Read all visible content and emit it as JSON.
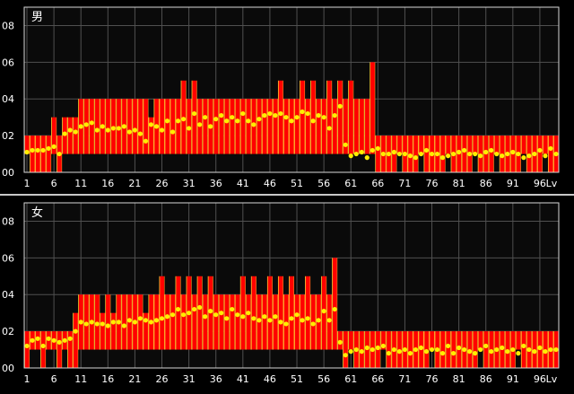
{
  "chart_data": [
    {
      "type": "bar",
      "title": "男",
      "x_tick_labels": [
        "1",
        "6",
        "11",
        "16",
        "21",
        "26",
        "31",
        "36",
        "41",
        "46",
        "51",
        "56",
        "61",
        "66",
        "71",
        "76",
        "81",
        "86",
        "91",
        "96",
        "Lv"
      ],
      "y_tick_labels": [
        "00",
        "02",
        "04",
        "06",
        "08"
      ],
      "ylim": [
        0,
        9
      ],
      "levels": [
        1,
        99
      ],
      "bar_highs": [
        2,
        2,
        2,
        2,
        2,
        3,
        2,
        3,
        3,
        3,
        4,
        4,
        4,
        4,
        4,
        4,
        4,
        4,
        4,
        4,
        4,
        4,
        4,
        3,
        4,
        4,
        4,
        4,
        4,
        5,
        4,
        5,
        4,
        4,
        4,
        4,
        4,
        4,
        4,
        4,
        4,
        4,
        4,
        4,
        4,
        4,
        4,
        5,
        4,
        4,
        4,
        5,
        4,
        5,
        4,
        4,
        5,
        4,
        5,
        4,
        5,
        4,
        4,
        4,
        6,
        2,
        2,
        2,
        2,
        2,
        2,
        2,
        2,
        2,
        2,
        2,
        2,
        2,
        2,
        2,
        2,
        2,
        2,
        2,
        2,
        2,
        2,
        2,
        2,
        2,
        2,
        2,
        2,
        2,
        2,
        2,
        2,
        2,
        2
      ],
      "bar_lows": [
        1,
        0,
        0,
        0,
        0,
        1,
        0,
        1,
        1,
        1,
        1,
        1,
        1,
        1,
        1,
        1,
        1,
        1,
        1,
        1,
        1,
        1,
        1,
        1,
        1,
        1,
        1,
        1,
        1,
        1,
        1,
        1,
        1,
        1,
        1,
        1,
        1,
        1,
        1,
        1,
        1,
        1,
        1,
        1,
        1,
        1,
        1,
        1,
        1,
        1,
        1,
        1,
        1,
        1,
        1,
        1,
        1,
        1,
        1,
        1,
        1,
        1,
        1,
        1,
        1,
        0,
        0,
        0,
        0,
        1,
        0,
        0,
        0,
        1,
        0,
        0,
        0,
        0,
        1,
        0,
        0,
        0,
        0,
        1,
        0,
        0,
        0,
        1,
        0,
        0,
        0,
        0,
        1,
        0,
        0,
        0,
        1,
        0,
        0
      ],
      "averages": [
        1.1,
        1.2,
        1.2,
        1.2,
        1.3,
        1.4,
        1.0,
        2.1,
        2.3,
        2.2,
        2.5,
        2.6,
        2.7,
        2.3,
        2.5,
        2.3,
        2.4,
        2.4,
        2.5,
        2.2,
        2.3,
        2.1,
        1.7,
        2.6,
        2.5,
        2.3,
        2.8,
        2.2,
        2.8,
        2.9,
        2.4,
        3.2,
        2.6,
        3.0,
        2.5,
        2.9,
        3.1,
        2.8,
        3.0,
        2.8,
        3.2,
        2.8,
        2.6,
        2.9,
        3.1,
        3.2,
        3.1,
        3.2,
        3.0,
        2.8,
        3.0,
        3.3,
        3.2,
        2.8,
        3.1,
        3.0,
        2.4,
        3.1,
        3.6,
        1.5,
        0.9,
        1.0,
        1.1,
        0.8,
        1.2,
        1.3,
        1.0,
        1.0,
        1.1,
        1.0,
        1.0,
        0.9,
        0.8,
        1.0,
        1.2,
        1.0,
        1.0,
        0.8,
        0.9,
        1.0,
        1.1,
        1.2,
        1.0,
        1.0,
        0.9,
        1.1,
        1.2,
        1.0,
        0.9,
        1.0,
        1.1,
        1.0,
        0.8,
        0.9,
        1.0,
        1.2,
        0.9,
        1.3,
        1.0
      ]
    },
    {
      "type": "bar",
      "title": "女",
      "x_tick_labels": [
        "1",
        "6",
        "11",
        "16",
        "21",
        "26",
        "31",
        "36",
        "41",
        "46",
        "51",
        "56",
        "61",
        "66",
        "71",
        "76",
        "81",
        "86",
        "91",
        "96",
        "Lv"
      ],
      "y_tick_labels": [
        "00",
        "02",
        "04",
        "06",
        "08"
      ],
      "ylim": [
        0,
        9
      ],
      "levels": [
        1,
        99
      ],
      "bar_highs": [
        2,
        2,
        2,
        2,
        2,
        2,
        2,
        2,
        2,
        3,
        4,
        4,
        4,
        4,
        3,
        4,
        3,
        4,
        4,
        4,
        4,
        4,
        3,
        4,
        4,
        5,
        4,
        4,
        5,
        4,
        5,
        4,
        5,
        4,
        5,
        4,
        4,
        4,
        4,
        4,
        5,
        4,
        5,
        4,
        4,
        5,
        4,
        5,
        4,
        5,
        4,
        4,
        5,
        4,
        4,
        5,
        4,
        6,
        2,
        2,
        2,
        2,
        2,
        2,
        2,
        2,
        2,
        2,
        2,
        2,
        2,
        2,
        2,
        2,
        2,
        2,
        2,
        2,
        2,
        2,
        2,
        2,
        2,
        2,
        2,
        2,
        2,
        2,
        2,
        2,
        2,
        2,
        2,
        2,
        2,
        2,
        2,
        2,
        2
      ],
      "bar_lows": [
        0,
        1,
        1,
        0,
        1,
        1,
        0,
        1,
        0,
        0,
        1,
        1,
        1,
        1,
        1,
        1,
        1,
        1,
        1,
        1,
        1,
        1,
        1,
        1,
        1,
        1,
        1,
        1,
        1,
        1,
        1,
        1,
        1,
        1,
        1,
        1,
        1,
        1,
        1,
        1,
        1,
        1,
        1,
        1,
        1,
        1,
        1,
        1,
        1,
        1,
        1,
        1,
        1,
        1,
        1,
        1,
        1,
        1,
        1,
        0,
        1,
        0,
        0,
        0,
        0,
        0,
        1,
        0,
        0,
        0,
        0,
        0,
        0,
        0,
        0,
        1,
        0,
        0,
        0,
        0,
        0,
        0,
        0,
        0,
        1,
        0,
        0,
        0,
        0,
        0,
        0,
        1,
        0,
        0,
        0,
        0,
        0,
        0,
        0
      ],
      "averages": [
        1.2,
        1.5,
        1.6,
        1.2,
        1.6,
        1.5,
        1.4,
        1.5,
        1.6,
        2.0,
        2.5,
        2.4,
        2.5,
        2.4,
        2.4,
        2.3,
        2.5,
        2.5,
        2.3,
        2.6,
        2.5,
        2.7,
        2.6,
        2.5,
        2.6,
        2.7,
        2.8,
        2.9,
        3.2,
        2.9,
        3.0,
        3.2,
        3.3,
        2.8,
        3.1,
        2.9,
        3.0,
        2.7,
        3.2,
        2.9,
        2.8,
        3.0,
        2.7,
        2.6,
        2.8,
        2.6,
        2.8,
        2.5,
        2.4,
        2.7,
        2.9,
        2.6,
        2.7,
        2.4,
        2.6,
        3.1,
        2.6,
        3.2,
        1.4,
        0.7,
        0.9,
        1.0,
        0.9,
        1.1,
        1.0,
        1.1,
        1.2,
        0.8,
        1.0,
        0.9,
        1.0,
        0.8,
        1.0,
        1.1,
        0.9,
        1.0,
        1.0,
        0.8,
        1.2,
        0.8,
        1.1,
        1.0,
        0.9,
        0.8,
        1.0,
        1.2,
        0.9,
        1.0,
        1.1,
        0.9,
        1.0,
        0.8,
        1.2,
        1.0,
        0.9,
        1.1,
        0.9,
        1.0,
        1.0
      ]
    }
  ],
  "colors": {
    "background": "#000000",
    "plot_background": "#0a0a0a",
    "bar_fill": "#ff0000",
    "bar_stripe": "#ffcc33",
    "dot": "#ffee00",
    "grid": "#505050",
    "frame": "#d8d8d8",
    "text": "#ffffff"
  }
}
